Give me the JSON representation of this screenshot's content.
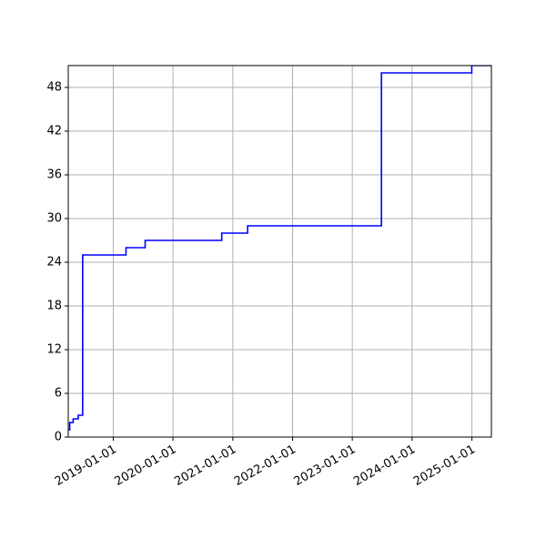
{
  "chart_data": {
    "type": "line",
    "title": "",
    "xlabel": "",
    "ylabel": "",
    "x_axis_type": "date",
    "xlim": [
      "2018-04-01",
      "2025-04-30"
    ],
    "ylim": [
      0,
      51
    ],
    "xticks": [
      "2019-01-01",
      "2020-01-01",
      "2021-01-01",
      "2022-01-01",
      "2023-01-01",
      "2024-01-01",
      "2025-01-01"
    ],
    "yticks": [
      0,
      6,
      12,
      18,
      24,
      30,
      36,
      42,
      48
    ],
    "grid": true,
    "legend": "none",
    "series": [
      {
        "color": "#0000ff",
        "step": "post",
        "x": [
          "2018-04-01",
          "2018-04-10",
          "2018-05-01",
          "2018-06-01",
          "2018-06-20",
          "2018-06-28",
          "2019-03-20",
          "2019-07-15",
          "2020-10-25",
          "2021-04-01",
          "2023-06-28",
          "2024-12-31",
          "2025-04-30"
        ],
        "y": [
          1,
          2,
          2.5,
          3,
          3,
          25,
          26,
          27,
          28,
          29,
          50,
          51,
          51
        ]
      }
    ]
  },
  "colors": {
    "line": "#0000ff",
    "grid": "#b0b0b0",
    "axes": "#000000"
  }
}
